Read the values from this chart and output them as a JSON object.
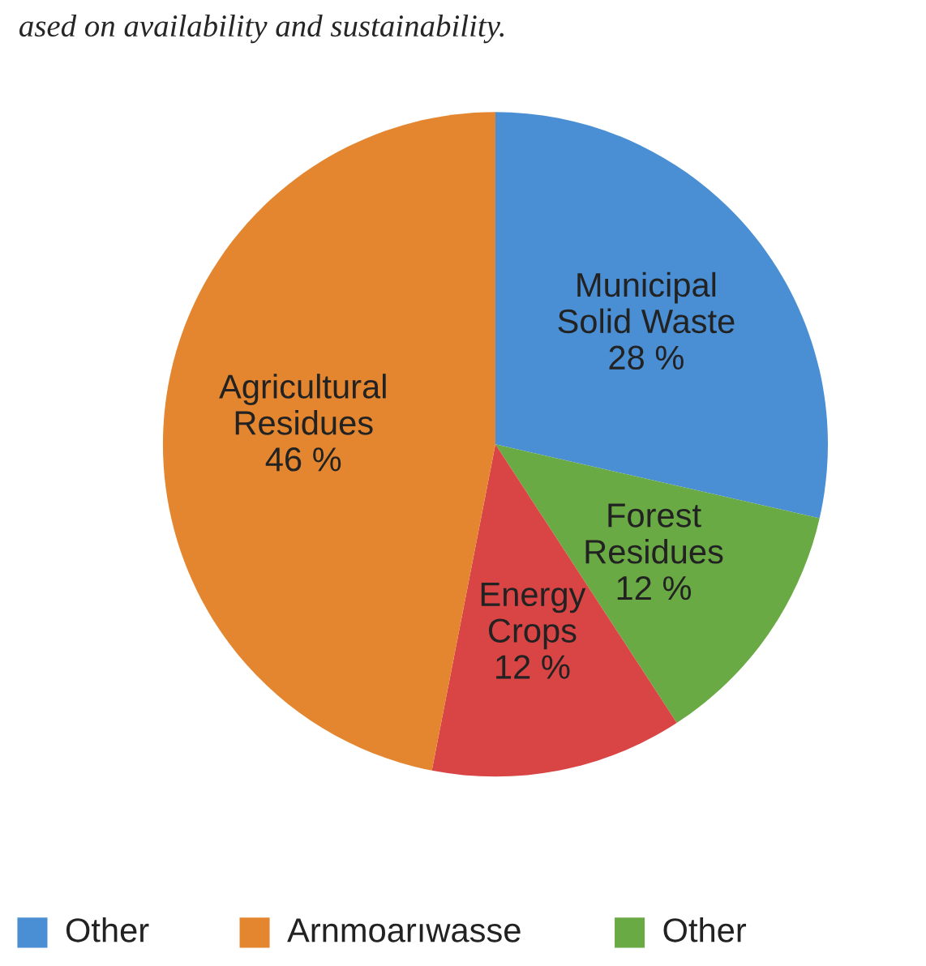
{
  "chart_data": {
    "type": "pie",
    "categories": [
      "Municipal\nSolid Waste",
      "Forest\nResidues",
      "Energy\nCrops",
      "Agricultural\nResidues"
    ],
    "values": [
      28,
      12,
      12,
      46
    ],
    "colors": [
      "#4a8fd4",
      "#6aaa45",
      "#d94544",
      "#e3862f"
    ],
    "value_labels": [
      "28 %",
      "12 %",
      "12 %",
      "46 %"
    ],
    "annotations": [
      "ased on availability and sustainability.",
      "Other",
      "Arnmoarıwasse",
      "Other"
    ]
  }
}
